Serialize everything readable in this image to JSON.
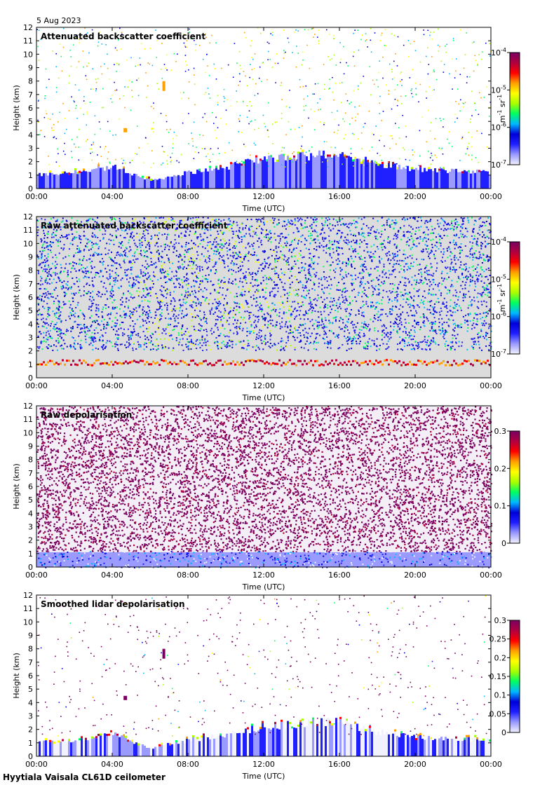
{
  "header": {
    "date": "5 Aug 2023"
  },
  "footer": {
    "label": "Hyytiala Vaisala CL61D ceilometer"
  },
  "colors": {
    "scale": [
      "#f2f2ff",
      "#9a9aff",
      "#2020ff",
      "#0000d8",
      "#00b8ff",
      "#00ff60",
      "#a8ff00",
      "#ffff00",
      "#ffa000",
      "#ff0000",
      "#b00040",
      "#7a0060"
    ],
    "background_gray": "#dcdcdc"
  },
  "chart_data": [
    {
      "type": "heatmap",
      "title": "Attenuated backscatter coefficient",
      "xlabel": "Time (UTC)",
      "ylabel": "Height (km)",
      "xticks": [
        "00:00",
        "04:00",
        "08:00",
        "12:00",
        "16:00",
        "20:00",
        "00:00"
      ],
      "yticks": [
        "0",
        "1",
        "2",
        "3",
        "4",
        "5",
        "6",
        "7",
        "8",
        "9",
        "10",
        "11",
        "12"
      ],
      "ylim": [
        0,
        12
      ],
      "xlim_hours": [
        0,
        24
      ],
      "colorbar": {
        "scale": "log",
        "ticks": [
          {
            "base": "10",
            "exp": "-4"
          },
          {
            "base": "10",
            "exp": "-5"
          },
          {
            "base": "10",
            "exp": "-6"
          },
          {
            "base": "10",
            "exp": "-7"
          }
        ],
        "unit": {
          "m": "m",
          "m_exp": "-1",
          "sr": "sr",
          "sr_exp": "-1"
        }
      },
      "boundary_layer_top_km": [
        [
          0,
          1.0
        ],
        [
          2,
          1.2
        ],
        [
          4,
          1.6
        ],
        [
          6,
          0.6
        ],
        [
          8,
          1.2
        ],
        [
          10,
          1.6
        ],
        [
          12,
          2.2
        ],
        [
          14,
          2.4
        ],
        [
          16,
          2.6
        ],
        [
          18,
          1.8
        ],
        [
          20,
          1.4
        ],
        [
          24,
          1.2
        ]
      ]
    },
    {
      "type": "heatmap",
      "title": "Raw attenuated backscatter coefficient",
      "xlabel": "Time (UTC)",
      "ylabel": "Height (km)",
      "xticks": [
        "00:00",
        "04:00",
        "08:00",
        "12:00",
        "16:00",
        "20:00",
        "00:00"
      ],
      "yticks": [
        "0",
        "1",
        "2",
        "3",
        "4",
        "5",
        "6",
        "7",
        "8",
        "9",
        "10",
        "11",
        "12"
      ],
      "ylim": [
        0,
        12
      ],
      "xlim_hours": [
        0,
        24
      ],
      "colorbar": {
        "scale": "log",
        "ticks": [
          {
            "base": "10",
            "exp": "-4"
          },
          {
            "base": "10",
            "exp": "-5"
          },
          {
            "base": "10",
            "exp": "-6"
          },
          {
            "base": "10",
            "exp": "-7"
          }
        ],
        "unit": {
          "m": "m",
          "m_exp": "-1",
          "sr": "sr",
          "sr_exp": "-1"
        }
      }
    },
    {
      "type": "heatmap",
      "title": "Raw depolarisation",
      "xlabel": "Time (UTC)",
      "ylabel": "Height (km)",
      "xticks": [
        "00:00",
        "04:00",
        "08:00",
        "12:00",
        "16:00",
        "20:00",
        "00:00"
      ],
      "yticks": [
        "0",
        "1",
        "2",
        "3",
        "4",
        "5",
        "6",
        "7",
        "8",
        "9",
        "10",
        "11",
        "12"
      ],
      "ylim": [
        0,
        12
      ],
      "xlim_hours": [
        0,
        24
      ],
      "colorbar": {
        "scale": "linear",
        "range": [
          0,
          0.3
        ],
        "ticks": [
          "0.3",
          "0.2",
          "0.1",
          "0"
        ]
      }
    },
    {
      "type": "heatmap",
      "title": "Smoothed lidar depolarisation",
      "xlabel": "Time (UTC)",
      "ylabel": "Height (km)",
      "xticks": [
        "00:00",
        "04:00",
        "08:00",
        "12:00",
        "16:00",
        "20:00",
        "00:00"
      ],
      "yticks": [
        "0",
        "1",
        "2",
        "3",
        "4",
        "5",
        "6",
        "7",
        "8",
        "9",
        "10",
        "11",
        "12"
      ],
      "ylim": [
        0,
        12
      ],
      "xlim_hours": [
        0,
        24
      ],
      "colorbar": {
        "scale": "linear",
        "range": [
          0,
          0.3
        ],
        "ticks": [
          "0.3",
          "0.25",
          "0.2",
          "0.15",
          "0.1",
          "0.05",
          "0"
        ]
      }
    }
  ]
}
